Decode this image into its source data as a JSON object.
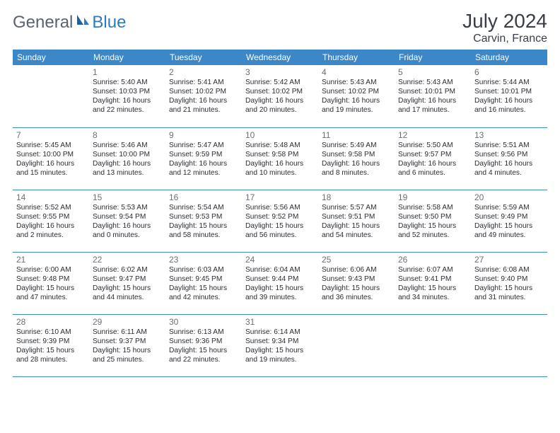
{
  "logo": {
    "part1": "General",
    "part2": "Blue"
  },
  "title": "July 2024",
  "location": "Carvin, France",
  "colors": {
    "header_bg": "#3b87c8",
    "header_text": "#ffffff",
    "border": "#3b87c8",
    "logo_gray": "#5a6470",
    "logo_blue": "#2e7cc0",
    "title_color": "#3a3f47",
    "daynum_color": "#6b6f76",
    "text_color": "#2a2d32",
    "page_bg": "#ffffff"
  },
  "columns": [
    "Sunday",
    "Monday",
    "Tuesday",
    "Wednesday",
    "Thursday",
    "Friday",
    "Saturday"
  ],
  "weeks": [
    [
      null,
      {
        "n": "1",
        "sr": "Sunrise: 5:40 AM",
        "ss": "Sunset: 10:03 PM",
        "d1": "Daylight: 16 hours",
        "d2": "and 22 minutes."
      },
      {
        "n": "2",
        "sr": "Sunrise: 5:41 AM",
        "ss": "Sunset: 10:02 PM",
        "d1": "Daylight: 16 hours",
        "d2": "and 21 minutes."
      },
      {
        "n": "3",
        "sr": "Sunrise: 5:42 AM",
        "ss": "Sunset: 10:02 PM",
        "d1": "Daylight: 16 hours",
        "d2": "and 20 minutes."
      },
      {
        "n": "4",
        "sr": "Sunrise: 5:43 AM",
        "ss": "Sunset: 10:02 PM",
        "d1": "Daylight: 16 hours",
        "d2": "and 19 minutes."
      },
      {
        "n": "5",
        "sr": "Sunrise: 5:43 AM",
        "ss": "Sunset: 10:01 PM",
        "d1": "Daylight: 16 hours",
        "d2": "and 17 minutes."
      },
      {
        "n": "6",
        "sr": "Sunrise: 5:44 AM",
        "ss": "Sunset: 10:01 PM",
        "d1": "Daylight: 16 hours",
        "d2": "and 16 minutes."
      }
    ],
    [
      {
        "n": "7",
        "sr": "Sunrise: 5:45 AM",
        "ss": "Sunset: 10:00 PM",
        "d1": "Daylight: 16 hours",
        "d2": "and 15 minutes."
      },
      {
        "n": "8",
        "sr": "Sunrise: 5:46 AM",
        "ss": "Sunset: 10:00 PM",
        "d1": "Daylight: 16 hours",
        "d2": "and 13 minutes."
      },
      {
        "n": "9",
        "sr": "Sunrise: 5:47 AM",
        "ss": "Sunset: 9:59 PM",
        "d1": "Daylight: 16 hours",
        "d2": "and 12 minutes."
      },
      {
        "n": "10",
        "sr": "Sunrise: 5:48 AM",
        "ss": "Sunset: 9:58 PM",
        "d1": "Daylight: 16 hours",
        "d2": "and 10 minutes."
      },
      {
        "n": "11",
        "sr": "Sunrise: 5:49 AM",
        "ss": "Sunset: 9:58 PM",
        "d1": "Daylight: 16 hours",
        "d2": "and 8 minutes."
      },
      {
        "n": "12",
        "sr": "Sunrise: 5:50 AM",
        "ss": "Sunset: 9:57 PM",
        "d1": "Daylight: 16 hours",
        "d2": "and 6 minutes."
      },
      {
        "n": "13",
        "sr": "Sunrise: 5:51 AM",
        "ss": "Sunset: 9:56 PM",
        "d1": "Daylight: 16 hours",
        "d2": "and 4 minutes."
      }
    ],
    [
      {
        "n": "14",
        "sr": "Sunrise: 5:52 AM",
        "ss": "Sunset: 9:55 PM",
        "d1": "Daylight: 16 hours",
        "d2": "and 2 minutes."
      },
      {
        "n": "15",
        "sr": "Sunrise: 5:53 AM",
        "ss": "Sunset: 9:54 PM",
        "d1": "Daylight: 16 hours",
        "d2": "and 0 minutes."
      },
      {
        "n": "16",
        "sr": "Sunrise: 5:54 AM",
        "ss": "Sunset: 9:53 PM",
        "d1": "Daylight: 15 hours",
        "d2": "and 58 minutes."
      },
      {
        "n": "17",
        "sr": "Sunrise: 5:56 AM",
        "ss": "Sunset: 9:52 PM",
        "d1": "Daylight: 15 hours",
        "d2": "and 56 minutes."
      },
      {
        "n": "18",
        "sr": "Sunrise: 5:57 AM",
        "ss": "Sunset: 9:51 PM",
        "d1": "Daylight: 15 hours",
        "d2": "and 54 minutes."
      },
      {
        "n": "19",
        "sr": "Sunrise: 5:58 AM",
        "ss": "Sunset: 9:50 PM",
        "d1": "Daylight: 15 hours",
        "d2": "and 52 minutes."
      },
      {
        "n": "20",
        "sr": "Sunrise: 5:59 AM",
        "ss": "Sunset: 9:49 PM",
        "d1": "Daylight: 15 hours",
        "d2": "and 49 minutes."
      }
    ],
    [
      {
        "n": "21",
        "sr": "Sunrise: 6:00 AM",
        "ss": "Sunset: 9:48 PM",
        "d1": "Daylight: 15 hours",
        "d2": "and 47 minutes."
      },
      {
        "n": "22",
        "sr": "Sunrise: 6:02 AM",
        "ss": "Sunset: 9:47 PM",
        "d1": "Daylight: 15 hours",
        "d2": "and 44 minutes."
      },
      {
        "n": "23",
        "sr": "Sunrise: 6:03 AM",
        "ss": "Sunset: 9:45 PM",
        "d1": "Daylight: 15 hours",
        "d2": "and 42 minutes."
      },
      {
        "n": "24",
        "sr": "Sunrise: 6:04 AM",
        "ss": "Sunset: 9:44 PM",
        "d1": "Daylight: 15 hours",
        "d2": "and 39 minutes."
      },
      {
        "n": "25",
        "sr": "Sunrise: 6:06 AM",
        "ss": "Sunset: 9:43 PM",
        "d1": "Daylight: 15 hours",
        "d2": "and 36 minutes."
      },
      {
        "n": "26",
        "sr": "Sunrise: 6:07 AM",
        "ss": "Sunset: 9:41 PM",
        "d1": "Daylight: 15 hours",
        "d2": "and 34 minutes."
      },
      {
        "n": "27",
        "sr": "Sunrise: 6:08 AM",
        "ss": "Sunset: 9:40 PM",
        "d1": "Daylight: 15 hours",
        "d2": "and 31 minutes."
      }
    ],
    [
      {
        "n": "28",
        "sr": "Sunrise: 6:10 AM",
        "ss": "Sunset: 9:39 PM",
        "d1": "Daylight: 15 hours",
        "d2": "and 28 minutes."
      },
      {
        "n": "29",
        "sr": "Sunrise: 6:11 AM",
        "ss": "Sunset: 9:37 PM",
        "d1": "Daylight: 15 hours",
        "d2": "and 25 minutes."
      },
      {
        "n": "30",
        "sr": "Sunrise: 6:13 AM",
        "ss": "Sunset: 9:36 PM",
        "d1": "Daylight: 15 hours",
        "d2": "and 22 minutes."
      },
      {
        "n": "31",
        "sr": "Sunrise: 6:14 AM",
        "ss": "Sunset: 9:34 PM",
        "d1": "Daylight: 15 hours",
        "d2": "and 19 minutes."
      },
      null,
      null,
      null
    ]
  ]
}
